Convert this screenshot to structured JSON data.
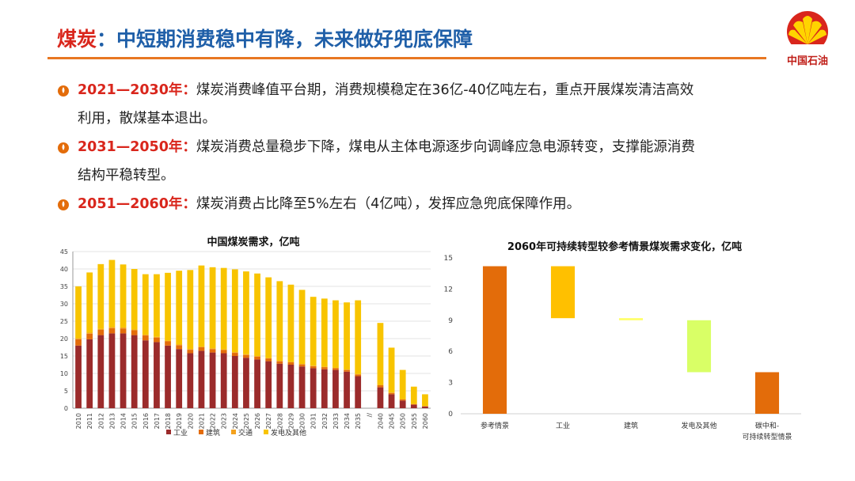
{
  "header": {
    "title_keyword": "煤炭",
    "title_rest": "：中短期消费稳中有降，未来做好兜底保障",
    "logo_text": "中国石油"
  },
  "bullets": [
    {
      "period": "2021—2030年：",
      "text": "煤炭消费峰值平台期，消费规模稳定在36亿-40亿吨左右，重点开展煤炭清洁高效",
      "text2": "利用，散煤基本退出。"
    },
    {
      "period": "2031—2050年：",
      "text": "煤炭消费总量稳步下降，煤电从主体电源逐步向调峰应急电源转变，支撑能源消费",
      "text2": "结构平稳转型。"
    },
    {
      "period": "2051—2060年：",
      "text": "煤炭消费占比降至5%左右（4亿吨），发挥应急兜底保障作用。",
      "text2": ""
    }
  ],
  "colors": {
    "title_blue": "#1f5fa8",
    "accent_red": "#d9261c",
    "rule_orange": "#e87722",
    "industry": "#9b2b2b",
    "building": "#e36c0a",
    "transport": "#f4a21e",
    "power": "#f8c400",
    "wf_ref": "#e36c0a",
    "wf_industry": "#ffc000",
    "wf_building": "#ffff66",
    "wf_power": "#d9ff66",
    "wf_final": "#e36c0a"
  },
  "chart_data": [
    {
      "type": "bar",
      "stacked": true,
      "title": "中国煤炭需求，亿吨",
      "categories": [
        "2010",
        "2011",
        "2012",
        "2013",
        "2014",
        "2015",
        "2016",
        "2017",
        "2018",
        "2019",
        "2020",
        "2021",
        "2022",
        "2023",
        "2024",
        "2025",
        "2026",
        "2027",
        "2028",
        "2029",
        "2030",
        "2031",
        "2032",
        "2033",
        "2034",
        "2035",
        "//",
        "2040",
        "2045",
        "2050",
        "2055",
        "2060"
      ],
      "ylim": [
        0,
        45
      ],
      "yticks": [
        0,
        5,
        10,
        15,
        20,
        25,
        30,
        35,
        40,
        45
      ],
      "legend": "bottom",
      "series": [
        {
          "name": "工业",
          "color_key": "industry",
          "values": [
            18.0,
            19.8,
            21.0,
            21.5,
            21.5,
            21.0,
            19.5,
            19.0,
            18.0,
            17.0,
            15.8,
            16.5,
            16.0,
            15.8,
            15.0,
            14.5,
            14.0,
            13.5,
            12.8,
            12.5,
            12.0,
            11.5,
            11.2,
            11.0,
            10.5,
            9.2,
            null,
            6.0,
            4.0,
            2.2,
            1.0,
            0.5
          ]
        },
        {
          "name": "建筑",
          "color_key": "building",
          "values": [
            1.8,
            1.6,
            1.5,
            1.5,
            1.4,
            1.4,
            1.4,
            1.3,
            1.2,
            1.1,
            1.0,
            1.0,
            1.0,
            0.9,
            0.9,
            0.8,
            0.8,
            0.8,
            0.7,
            0.7,
            0.6,
            0.6,
            0.6,
            0.5,
            0.5,
            0.5,
            null,
            0.6,
            0.4,
            0.3,
            0.2,
            0.1
          ]
        },
        {
          "name": "交通",
          "color_key": "transport",
          "values": [
            0.3,
            0.3,
            0.3,
            0.3,
            0.3,
            0.2,
            0.2,
            0.2,
            0.2,
            0.2,
            0.2,
            0.2,
            0.2,
            0.2,
            0.2,
            0.2,
            0.2,
            0.1,
            0.1,
            0.1,
            0.1,
            0.1,
            0.1,
            0.1,
            0.1,
            0.1,
            null,
            0.1,
            0.1,
            0.1,
            0.0,
            0.0
          ]
        },
        {
          "name": "发电及其他",
          "color_key": "power",
          "values": [
            14.9,
            17.3,
            18.6,
            19.3,
            18.1,
            17.4,
            17.4,
            18.0,
            19.5,
            21.2,
            22.7,
            23.3,
            23.3,
            23.4,
            23.8,
            23.8,
            23.7,
            23.2,
            22.9,
            22.2,
            21.3,
            19.8,
            19.6,
            19.4,
            19.3,
            21.2,
            null,
            17.8,
            12.9,
            8.4,
            5.0,
            3.4
          ]
        }
      ]
    },
    {
      "type": "waterfall",
      "title": "2060年可持续转型较参考情景煤炭需求变化，亿吨",
      "ylim": [
        0,
        15
      ],
      "yticks": [
        0,
        3,
        6,
        9,
        12,
        15
      ],
      "bars": [
        {
          "label": "参考情景",
          "label2": "",
          "from": 0,
          "to": 14.2,
          "color_key": "wf_ref"
        },
        {
          "label": "工业",
          "label2": "",
          "from": 9.2,
          "to": 14.2,
          "color_key": "wf_industry"
        },
        {
          "label": "建筑",
          "label2": "",
          "from": 9.0,
          "to": 9.2,
          "color_key": "wf_building"
        },
        {
          "label": "发电及其他",
          "label2": "",
          "from": 4.0,
          "to": 9.0,
          "color_key": "wf_power"
        },
        {
          "label": "碳中和-",
          "label2": "可持续转型情景",
          "from": 0,
          "to": 4.0,
          "color_key": "wf_final"
        }
      ]
    }
  ]
}
